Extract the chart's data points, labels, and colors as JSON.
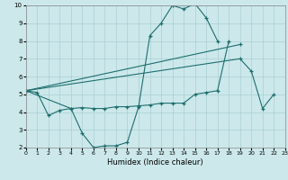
{
  "xlabel": "Humidex (Indice chaleur)",
  "xlim": [
    0,
    23
  ],
  "ylim": [
    2,
    10
  ],
  "xticks": [
    0,
    1,
    2,
    3,
    4,
    5,
    6,
    7,
    8,
    9,
    10,
    11,
    12,
    13,
    14,
    15,
    16,
    17,
    18,
    19,
    20,
    21,
    22,
    23
  ],
  "yticks": [
    2,
    3,
    4,
    5,
    6,
    7,
    8,
    9,
    10
  ],
  "bg_color": "#cce8eb",
  "grid_color": "#aacfd5",
  "line_color": "#1e6e6e",
  "lines": [
    {
      "x": [
        0,
        1,
        2,
        3,
        4,
        5,
        6,
        7,
        8,
        9,
        10,
        11,
        12,
        13,
        14,
        15,
        16,
        17
      ],
      "y": [
        5.2,
        5.1,
        3.8,
        4.1,
        4.2,
        2.8,
        2.0,
        2.1,
        2.1,
        2.3,
        4.3,
        8.3,
        9.0,
        10.0,
        9.8,
        10.1,
        9.3,
        8.0
      ]
    },
    {
      "x": [
        0,
        4,
        5,
        6,
        7,
        8,
        9,
        10,
        11,
        12,
        13,
        14,
        15,
        16,
        17,
        18
      ],
      "y": [
        5.2,
        4.2,
        4.25,
        4.2,
        4.2,
        4.3,
        4.3,
        4.35,
        4.4,
        4.5,
        4.5,
        4.5,
        5.0,
        5.1,
        5.2,
        8.0
      ]
    },
    {
      "x": [
        0,
        19,
        20,
        21,
        22
      ],
      "y": [
        5.2,
        7.0,
        6.3,
        4.2,
        5.0
      ]
    },
    {
      "x": [
        0,
        19
      ],
      "y": [
        5.2,
        7.8
      ]
    }
  ]
}
